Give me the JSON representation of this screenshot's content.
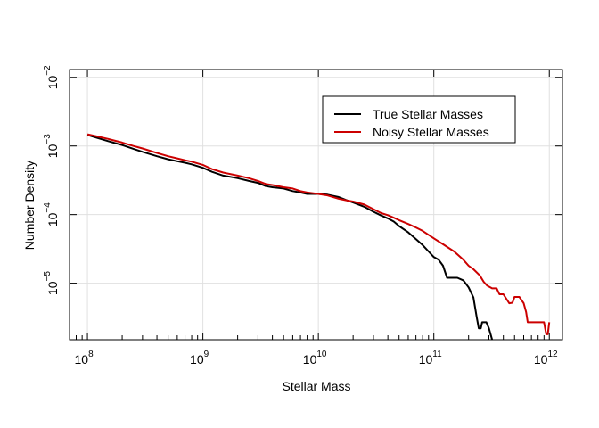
{
  "chart_data": {
    "type": "line",
    "title": "",
    "xlabel": "Stellar Mass",
    "ylabel": "Number Density",
    "x_scale": "log",
    "y_scale": "log",
    "xlim": [
      70000000,
      1300000000000
    ],
    "ylim": [
      1.5e-06,
      0.013
    ],
    "grid": true,
    "legend_position": "top-right",
    "x_ticks": [
      {
        "value": 100000000,
        "base": "10",
        "exp": "8"
      },
      {
        "value": 1000000000,
        "base": "10",
        "exp": "9"
      },
      {
        "value": 10000000000,
        "base": "10",
        "exp": "10"
      },
      {
        "value": 100000000000,
        "base": "10",
        "exp": "11"
      },
      {
        "value": 1000000000000,
        "base": "10",
        "exp": "12"
      }
    ],
    "y_ticks": [
      {
        "value": 1e-05,
        "base": "10",
        "exp": "−5"
      },
      {
        "value": 0.0001,
        "base": "10",
        "exp": "−4"
      },
      {
        "value": 0.001,
        "base": "10",
        "exp": "−3"
      },
      {
        "value": 0.01,
        "base": "10",
        "exp": "−2"
      }
    ],
    "series": [
      {
        "name": "True Stellar Masses",
        "color": "#000000",
        "points": [
          [
            100000000,
            0.00145
          ],
          [
            120000000,
            0.00132
          ],
          [
            150000000,
            0.00118
          ],
          [
            200000000,
            0.00103
          ],
          [
            250000000,
            0.00091
          ],
          [
            300000000,
            0.00082
          ],
          [
            400000000,
            0.00071
          ],
          [
            500000000,
            0.00064
          ],
          [
            600000000,
            0.0006
          ],
          [
            700000000,
            0.00057
          ],
          [
            800000000,
            0.00054
          ],
          [
            1000000000,
            0.00048
          ],
          [
            1200000000,
            0.00042
          ],
          [
            1500000000,
            0.00037
          ],
          [
            2000000000,
            0.00034
          ],
          [
            2500000000,
            0.00031
          ],
          [
            3000000000,
            0.00029
          ],
          [
            3500000000,
            0.00026
          ],
          [
            4000000000,
            0.00025
          ],
          [
            5000000000,
            0.00024
          ],
          [
            6000000000,
            0.00022
          ],
          [
            7000000000,
            0.00021
          ],
          [
            8000000000,
            0.0002
          ],
          [
            10000000000,
            0.0002
          ],
          [
            12000000000,
            0.000195
          ],
          [
            15000000000,
            0.00018
          ],
          [
            18000000000,
            0.00016
          ],
          [
            20000000000,
            0.00015
          ],
          [
            25000000000,
            0.00013
          ],
          [
            30000000000,
            0.00011
          ],
          [
            35000000000,
            9.7e-05
          ],
          [
            40000000000,
            8.8e-05
          ],
          [
            45000000000,
            7.9e-05
          ],
          [
            50000000000,
            6.8e-05
          ],
          [
            60000000000,
            5.5e-05
          ],
          [
            70000000000,
            4.4e-05
          ],
          [
            80000000000,
            3.6e-05
          ],
          [
            90000000000,
            2.9e-05
          ],
          [
            100000000000,
            2.4e-05
          ],
          [
            110000000000,
            2.2e-05
          ],
          [
            120000000000,
            1.8e-05
          ],
          [
            130000000000,
            1.2e-05
          ],
          [
            160000000000,
            1.2e-05
          ],
          [
            180000000000,
            1.1e-05
          ],
          [
            200000000000,
            8.7e-06
          ],
          [
            220000000000,
            6.2e-06
          ],
          [
            235000000000,
            3.2e-06
          ],
          [
            245000000000,
            2.2e-06
          ],
          [
            255000000000,
            2.2e-06
          ],
          [
            262000000000,
            2.7e-06
          ],
          [
            285000000000,
            2.7e-06
          ],
          [
            300000000000,
            2.2e-06
          ],
          [
            320000000000,
            1.5e-06
          ]
        ]
      },
      {
        "name": "Noisy Stellar Masses",
        "color": "#cc0000",
        "points": [
          [
            100000000,
            0.00148
          ],
          [
            120000000,
            0.00138
          ],
          [
            150000000,
            0.00127
          ],
          [
            200000000,
            0.00112
          ],
          [
            250000000,
            0.001
          ],
          [
            300000000,
            0.00092
          ],
          [
            400000000,
            0.00079
          ],
          [
            500000000,
            0.00071
          ],
          [
            600000000,
            0.00066
          ],
          [
            700000000,
            0.00062
          ],
          [
            800000000,
            0.00059
          ],
          [
            1000000000,
            0.00053
          ],
          [
            1200000000,
            0.00046
          ],
          [
            1500000000,
            0.00041
          ],
          [
            2000000000,
            0.00037
          ],
          [
            2500000000,
            0.00034
          ],
          [
            3000000000,
            0.00031
          ],
          [
            3500000000,
            0.00028
          ],
          [
            4000000000,
            0.00027
          ],
          [
            5000000000,
            0.00025
          ],
          [
            6000000000,
            0.00024
          ],
          [
            7000000000,
            0.00022
          ],
          [
            8000000000,
            0.00021
          ],
          [
            10000000000,
            0.0002
          ],
          [
            12000000000,
            0.00019
          ],
          [
            15000000000,
            0.00017
          ],
          [
            18000000000,
            0.00016
          ],
          [
            20000000000,
            0.000155
          ],
          [
            25000000000,
            0.00014
          ],
          [
            30000000000,
            0.00012
          ],
          [
            35000000000,
            0.000105
          ],
          [
            40000000000,
            9.8e-05
          ],
          [
            45000000000,
            9e-05
          ],
          [
            50000000000,
            8.3e-05
          ],
          [
            60000000000,
            7.3e-05
          ],
          [
            70000000000,
            6.5e-05
          ],
          [
            80000000000,
            5.8e-05
          ],
          [
            100000000000,
            4.5e-05
          ],
          [
            120000000000,
            3.7e-05
          ],
          [
            150000000000,
            2.9e-05
          ],
          [
            180000000000,
            2.2e-05
          ],
          [
            200000000000,
            1.8e-05
          ],
          [
            220000000000,
            1.6e-05
          ],
          [
            250000000000,
            1.3e-05
          ],
          [
            270000000000,
            1.05e-05
          ],
          [
            290000000000,
            9.2e-06
          ],
          [
            320000000000,
            8.4e-06
          ],
          [
            350000000000,
            8.4e-06
          ],
          [
            370000000000,
            6.9e-06
          ],
          [
            400000000000,
            6.9e-06
          ],
          [
            450000000000,
            5.1e-06
          ],
          [
            480000000000,
            5.2e-06
          ],
          [
            500000000000,
            6.3e-06
          ],
          [
            550000000000,
            6.3e-06
          ],
          [
            600000000000,
            5.1e-06
          ],
          [
            630000000000,
            3.8e-06
          ],
          [
            650000000000,
            2.7e-06
          ],
          [
            700000000000,
            2.7e-06
          ],
          [
            900000000000,
            2.7e-06
          ],
          [
            940000000000,
            1.8e-06
          ],
          [
            970000000000,
            1.8e-06
          ],
          [
            1000000000000,
            2.7e-06
          ]
        ]
      }
    ]
  }
}
